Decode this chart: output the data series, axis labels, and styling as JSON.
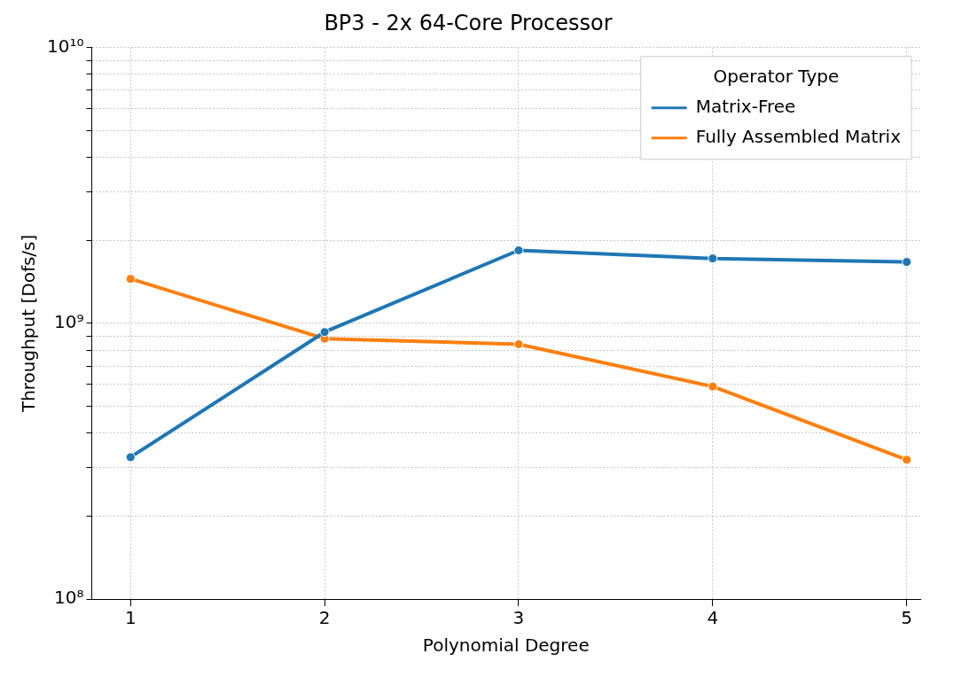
{
  "chart_data": {
    "type": "line",
    "title": "BP3 - 2x 64-Core Processor",
    "xlabel": "Polynomial Degree",
    "ylabel": "Throughput [Dofs/s]",
    "legend_title": "Operator Type",
    "x": [
      1,
      2,
      3,
      4,
      5
    ],
    "series": [
      {
        "name": "Matrix-Free",
        "color": "#1f77b4",
        "values": [
          327000000.0,
          930000000.0,
          1840000000.0,
          1720000000.0,
          1670000000.0
        ]
      },
      {
        "name": "Fully Assembled Matrix",
        "color": "#ff7f0e",
        "values": [
          1450000000.0,
          880000000.0,
          840000000.0,
          590000000.0,
          320000000.0
        ]
      }
    ],
    "log": "y",
    "xlim": [
      0.8,
      5.07
    ],
    "xticks": [
      1,
      2,
      3,
      4,
      5
    ],
    "ylim": [
      100000000.0,
      10000000000.0
    ],
    "yticks": [
      {
        "value": 100000000.0,
        "label": "10⁸"
      },
      {
        "value": 200000000.0,
        "label": null
      },
      {
        "value": 300000000.0,
        "label": null
      },
      {
        "value": 400000000.0,
        "label": null
      },
      {
        "value": 500000000.0,
        "label": null
      },
      {
        "value": 600000000.0,
        "label": null
      },
      {
        "value": 700000000.0,
        "label": null
      },
      {
        "value": 800000000.0,
        "label": null
      },
      {
        "value": 900000000.0,
        "label": null
      },
      {
        "value": 1000000000.0,
        "label": "10⁹"
      },
      {
        "value": 2000000000.0,
        "label": null
      },
      {
        "value": 3000000000.0,
        "label": null
      },
      {
        "value": 4000000000.0,
        "label": null
      },
      {
        "value": 5000000000.0,
        "label": null
      },
      {
        "value": 6000000000.0,
        "label": null
      },
      {
        "value": 7000000000.0,
        "label": null
      },
      {
        "value": 8000000000.0,
        "label": null
      },
      {
        "value": 9000000000.0,
        "label": null
      },
      {
        "value": 10000000000.0,
        "label": "10¹⁰"
      }
    ],
    "grid": true,
    "legend": "top right",
    "marker": "circle",
    "line_style": "solid"
  }
}
